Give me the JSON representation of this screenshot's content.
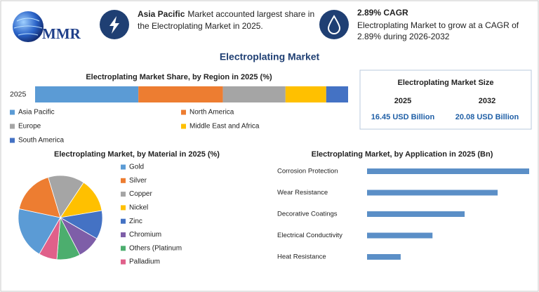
{
  "logo": "MMR",
  "callouts": [
    {
      "highlight": "Asia Pacific",
      "lines": [
        "Market accounted largest share in",
        "the Electroplating Market in 2025."
      ]
    },
    {
      "highlight": "2.89% CAGR",
      "lines": [
        "Electroplating Market to grow at a CAGR of",
        "2.89% during 2026-2032"
      ]
    }
  ],
  "title": "Electroplating Market",
  "market_size": {
    "title": "Electroplating Market Size",
    "columns": [
      {
        "year": "2025",
        "value": "16.45 USD Billion"
      },
      {
        "year": "2032",
        "value": "20.08 USD Billion"
      }
    ]
  },
  "chart_data": [
    {
      "type": "stacked_bar",
      "orientation": "horizontal",
      "title": "Electroplating Market Share, by Region in 2025 (%)",
      "categories": [
        "2025"
      ],
      "series": [
        {
          "name": "Asia Pacific",
          "color": "#5b9bd5",
          "values": [
            33
          ]
        },
        {
          "name": "North America",
          "color": "#ed7d31",
          "values": [
            27
          ]
        },
        {
          "name": "Europe",
          "color": "#a5a5a5",
          "values": [
            20
          ]
        },
        {
          "name": "Middle East and Africa",
          "color": "#ffc000",
          "values": [
            13
          ]
        },
        {
          "name": "South America",
          "color": "#4472c4",
          "values": [
            7
          ]
        }
      ],
      "legend": "bottom"
    },
    {
      "type": "pie",
      "title": "Electroplating Market, by Material in 2025 (%)",
      "categories": [
        "Gold",
        "Silver",
        "Copper",
        "Nickel",
        "Zinc",
        "Chromium",
        "Others (Platinum",
        "Palladium"
      ],
      "values": [
        20,
        17,
        14,
        13,
        11,
        9,
        9,
        7
      ],
      "colors": [
        "#5b9bd5",
        "#ed7d31",
        "#a5a5a5",
        "#ffc000",
        "#4472c4",
        "#7e5ea8",
        "#4cae6e",
        "#e0608a"
      ],
      "legend": "right"
    },
    {
      "type": "bar",
      "orientation": "horizontal",
      "title": "Electroplating Market, by Application in 2025 (Bn)",
      "categories": [
        "Corrosion Protection",
        "Wear Resistance",
        "Decorative Coatings",
        "Electrical Conductivity",
        "Heat Resistance"
      ],
      "values": [
        5.45,
        4.39,
        3.28,
        2.2,
        1.13
      ],
      "color": "#5b8fc7"
    }
  ]
}
